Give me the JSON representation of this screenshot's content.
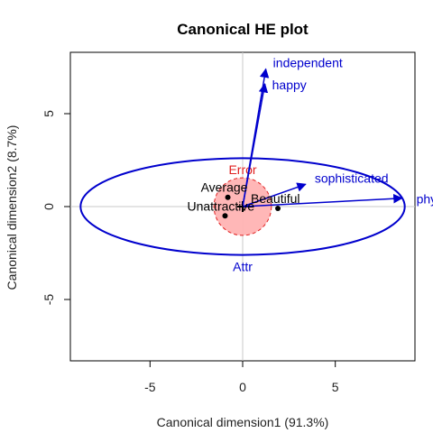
{
  "chart_data": {
    "type": "scatter",
    "title": "Canonical HE plot",
    "xlabel": "Canonical dimension1 (91.3%)",
    "ylabel": "Canonical dimension2 (8.7%)",
    "xlim": [
      -9.3,
      9.3
    ],
    "ylim": [
      -8.3,
      8.3
    ],
    "xticks": [
      -5,
      0,
      5
    ],
    "yticks": [
      -5,
      0,
      5
    ],
    "points": [
      {
        "label": "Average",
        "x": -0.8,
        "y": 0.5
      },
      {
        "label": "Beautiful",
        "x": 1.9,
        "y": -0.1
      },
      {
        "label": "Unattractive",
        "x": -0.95,
        "y": -0.5
      }
    ],
    "vectors": [
      {
        "label": "independent",
        "x": 1.25,
        "y": 7.4
      },
      {
        "label": "happy",
        "x": 1.2,
        "y": 6.6
      },
      {
        "label": "sophisticated",
        "x": 3.4,
        "y": 1.2
      },
      {
        "label": "phy",
        "x": 8.6,
        "y": 0.45
      }
    ],
    "ellipses": [
      {
        "label": "Attr",
        "color": "#0000cd",
        "cx": 0,
        "cy": 0,
        "rx": 8.75,
        "ry": 2.6,
        "fill": false
      },
      {
        "label": "Error",
        "color": "#e02020",
        "cx": 0,
        "cy": 0,
        "rx": 1.55,
        "ry": 1.55,
        "fill": true,
        "fill_color": "#ffb3b3"
      }
    ],
    "grid": false,
    "reference_lines": {
      "x": 0,
      "y": 0,
      "color": "#c8c8c8"
    }
  }
}
